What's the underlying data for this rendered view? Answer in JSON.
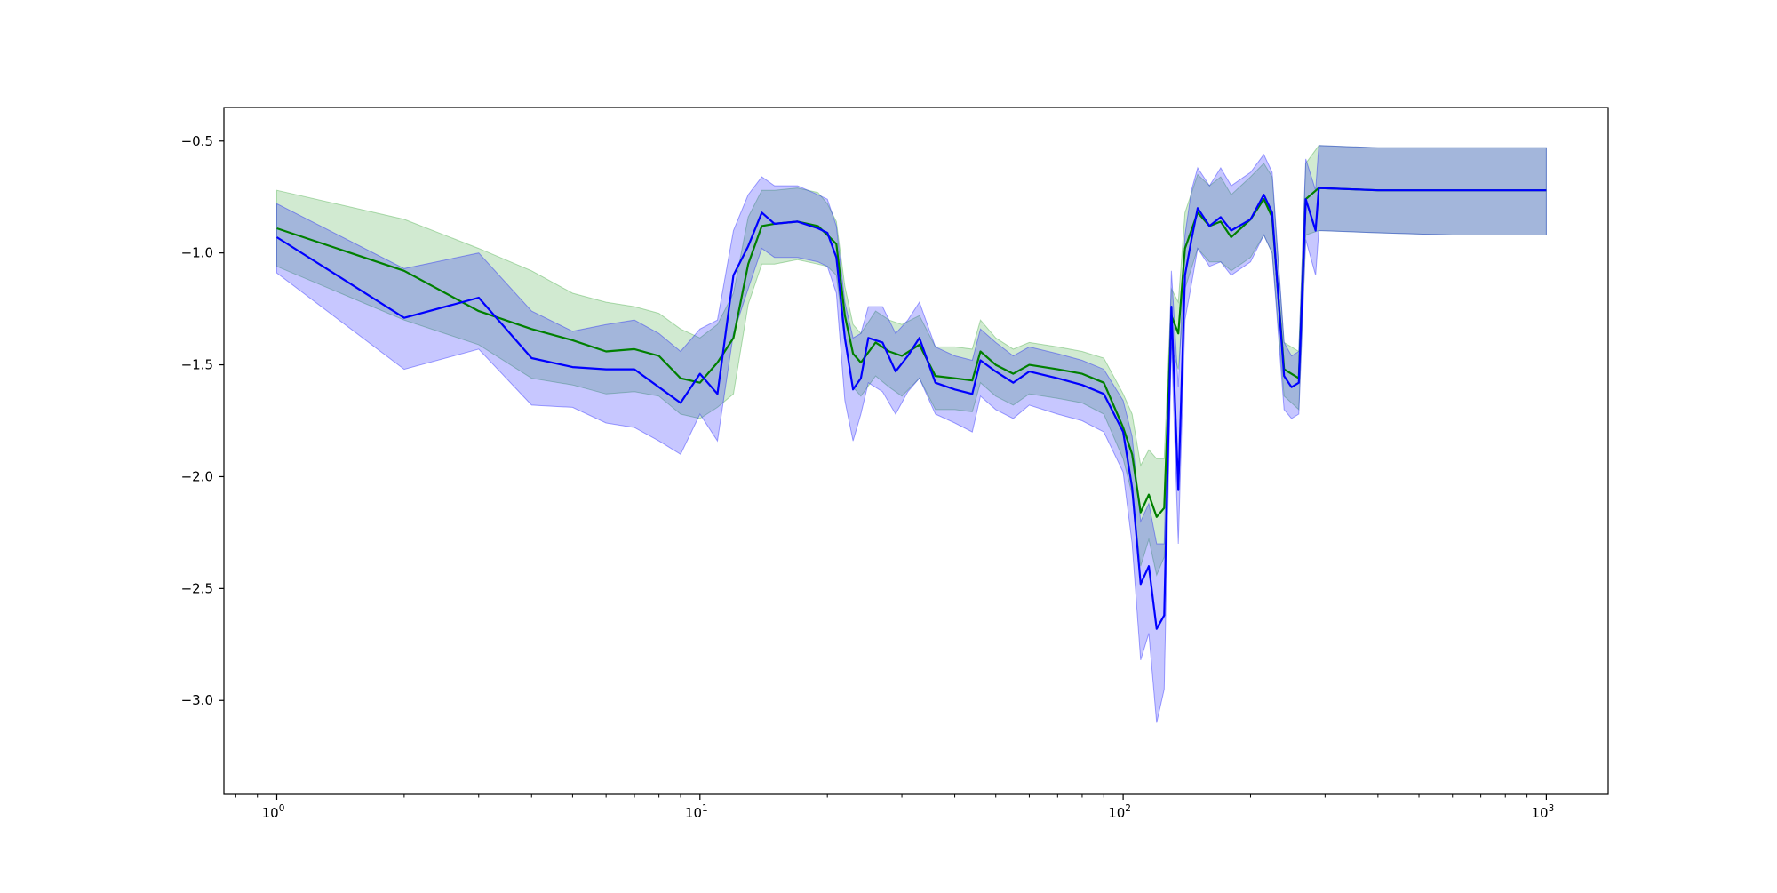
{
  "chart_data": {
    "type": "line",
    "xscale": "log",
    "xlim": [
      0.75,
      1400
    ],
    "ylim": [
      -3.42,
      -0.35
    ],
    "grid": false,
    "legend": "none",
    "xticks": [
      {
        "value": 1,
        "base": "10",
        "exp": "0"
      },
      {
        "value": 10,
        "base": "10",
        "exp": "1"
      },
      {
        "value": 100,
        "base": "10",
        "exp": "2"
      },
      {
        "value": 1000,
        "base": "10",
        "exp": "3"
      }
    ],
    "yticks": [
      {
        "value": -0.5,
        "label": "−0.5"
      },
      {
        "value": -1.0,
        "label": "−1.0"
      },
      {
        "value": -1.5,
        "label": "−1.5"
      },
      {
        "value": -2.0,
        "label": "−2.0"
      },
      {
        "value": -2.5,
        "label": "−2.5"
      },
      {
        "value": -3.0,
        "label": "−3.0"
      }
    ],
    "series": [
      {
        "color": "#008000",
        "band_color": "#2ca02c",
        "band_opacity": 0.22,
        "points": [
          [
            1,
            -0.89,
            -0.72,
            -1.06
          ],
          [
            2,
            -1.08,
            -0.85,
            -1.3
          ],
          [
            3,
            -1.26,
            -0.98,
            -1.41
          ],
          [
            4,
            -1.34,
            -1.08,
            -1.56
          ],
          [
            5,
            -1.39,
            -1.18,
            -1.59
          ],
          [
            6,
            -1.44,
            -1.22,
            -1.63
          ],
          [
            7,
            -1.43,
            -1.24,
            -1.62
          ],
          [
            8,
            -1.46,
            -1.27,
            -1.64
          ],
          [
            9,
            -1.56,
            -1.34,
            -1.72
          ],
          [
            10,
            -1.58,
            -1.38,
            -1.74
          ],
          [
            11,
            -1.49,
            -1.32,
            -1.69
          ],
          [
            12,
            -1.38,
            -1.18,
            -1.63
          ],
          [
            13,
            -1.05,
            -0.84,
            -1.23
          ],
          [
            14,
            -0.88,
            -0.72,
            -1.05
          ],
          [
            15,
            -0.87,
            -0.72,
            -1.05
          ],
          [
            17,
            -0.86,
            -0.71,
            -1.03
          ],
          [
            19,
            -0.88,
            -0.73,
            -1.05
          ],
          [
            20,
            -0.92,
            -0.78,
            -1.06
          ],
          [
            21,
            -0.96,
            -0.86,
            -1.1
          ],
          [
            22,
            -1.28,
            -1.15,
            -1.4
          ],
          [
            23,
            -1.45,
            -1.32,
            -1.6
          ],
          [
            24,
            -1.49,
            -1.36,
            -1.64
          ],
          [
            26,
            -1.4,
            -1.26,
            -1.55
          ],
          [
            28,
            -1.44,
            -1.3,
            -1.6
          ],
          [
            30,
            -1.46,
            -1.32,
            -1.64
          ],
          [
            33,
            -1.41,
            -1.28,
            -1.56
          ],
          [
            36,
            -1.55,
            -1.42,
            -1.7
          ],
          [
            40,
            -1.56,
            -1.42,
            -1.7
          ],
          [
            44,
            -1.57,
            -1.43,
            -1.71
          ],
          [
            46,
            -1.44,
            -1.3,
            -1.58
          ],
          [
            50,
            -1.5,
            -1.38,
            -1.64
          ],
          [
            55,
            -1.54,
            -1.43,
            -1.68
          ],
          [
            60,
            -1.5,
            -1.4,
            -1.63
          ],
          [
            70,
            -1.52,
            -1.42,
            -1.65
          ],
          [
            80,
            -1.54,
            -1.44,
            -1.67
          ],
          [
            90,
            -1.58,
            -1.47,
            -1.72
          ],
          [
            100,
            -1.78,
            -1.63,
            -1.92
          ],
          [
            105,
            -1.9,
            -1.72,
            -2.08
          ],
          [
            110,
            -2.16,
            -1.95,
            -2.4
          ],
          [
            115,
            -2.08,
            -1.88,
            -2.28
          ],
          [
            120,
            -2.18,
            -1.92,
            -2.44
          ],
          [
            125,
            -2.14,
            -1.92,
            -2.36
          ],
          [
            130,
            -1.28,
            -1.16,
            -1.42
          ],
          [
            135,
            -1.36,
            -1.22,
            -1.52
          ],
          [
            140,
            -0.98,
            -0.82,
            -1.16
          ],
          [
            150,
            -0.82,
            -0.65,
            -0.98
          ],
          [
            160,
            -0.88,
            -0.7,
            -1.04
          ],
          [
            170,
            -0.86,
            -0.66,
            -1.04
          ],
          [
            180,
            -0.93,
            -0.74,
            -1.08
          ],
          [
            200,
            -0.85,
            -0.66,
            -1.02
          ],
          [
            215,
            -0.76,
            -0.6,
            -0.92
          ],
          [
            225,
            -0.84,
            -0.66,
            -1.0
          ],
          [
            240,
            -1.52,
            -1.4,
            -1.64
          ],
          [
            260,
            -1.56,
            -1.44,
            -1.7
          ],
          [
            270,
            -0.76,
            -0.6,
            -0.92
          ],
          [
            290,
            -0.71,
            -0.52,
            -0.9
          ],
          [
            400,
            -0.72,
            -0.53,
            -0.91
          ],
          [
            600,
            -0.72,
            -0.53,
            -0.92
          ],
          [
            1000,
            -0.72,
            -0.53,
            -0.92
          ]
        ]
      },
      {
        "color": "#0000ff",
        "band_color": "#0000ff",
        "band_opacity": 0.22,
        "points": [
          [
            1,
            -0.93,
            -0.78,
            -1.09
          ],
          [
            2,
            -1.29,
            -1.07,
            -1.52
          ],
          [
            3,
            -1.2,
            -1.0,
            -1.43
          ],
          [
            4,
            -1.47,
            -1.26,
            -1.68
          ],
          [
            5,
            -1.51,
            -1.35,
            -1.69
          ],
          [
            6,
            -1.52,
            -1.32,
            -1.76
          ],
          [
            7,
            -1.52,
            -1.3,
            -1.78
          ],
          [
            8,
            -1.6,
            -1.36,
            -1.84
          ],
          [
            9,
            -1.67,
            -1.44,
            -1.9
          ],
          [
            10,
            -1.54,
            -1.34,
            -1.72
          ],
          [
            11,
            -1.63,
            -1.3,
            -1.84
          ],
          [
            12,
            -1.1,
            -0.9,
            -1.36
          ],
          [
            13,
            -0.97,
            -0.74,
            -1.16
          ],
          [
            14,
            -0.82,
            -0.66,
            -0.98
          ],
          [
            15,
            -0.87,
            -0.7,
            -1.02
          ],
          [
            17,
            -0.86,
            -0.7,
            -1.02
          ],
          [
            19,
            -0.89,
            -0.74,
            -1.04
          ],
          [
            20,
            -0.91,
            -0.76,
            -1.06
          ],
          [
            21,
            -1.02,
            -0.88,
            -1.18
          ],
          [
            22,
            -1.38,
            -1.22,
            -1.66
          ],
          [
            23,
            -1.61,
            -1.38,
            -1.84
          ],
          [
            24,
            -1.56,
            -1.36,
            -1.72
          ],
          [
            25,
            -1.38,
            -1.24,
            -1.58
          ],
          [
            27,
            -1.4,
            -1.24,
            -1.62
          ],
          [
            29,
            -1.53,
            -1.36,
            -1.72
          ],
          [
            31,
            -1.46,
            -1.3,
            -1.62
          ],
          [
            33,
            -1.38,
            -1.22,
            -1.56
          ],
          [
            36,
            -1.58,
            -1.42,
            -1.72
          ],
          [
            40,
            -1.61,
            -1.46,
            -1.76
          ],
          [
            44,
            -1.63,
            -1.48,
            -1.8
          ],
          [
            46,
            -1.48,
            -1.34,
            -1.64
          ],
          [
            50,
            -1.53,
            -1.4,
            -1.7
          ],
          [
            55,
            -1.58,
            -1.46,
            -1.74
          ],
          [
            60,
            -1.53,
            -1.42,
            -1.68
          ],
          [
            70,
            -1.56,
            -1.45,
            -1.72
          ],
          [
            80,
            -1.59,
            -1.48,
            -1.75
          ],
          [
            90,
            -1.63,
            -1.52,
            -1.8
          ],
          [
            100,
            -1.8,
            -1.66,
            -1.98
          ],
          [
            105,
            -2.05,
            -1.82,
            -2.3
          ],
          [
            110,
            -2.48,
            -2.2,
            -2.82
          ],
          [
            115,
            -2.4,
            -2.12,
            -2.7
          ],
          [
            120,
            -2.68,
            -2.3,
            -3.1
          ],
          [
            125,
            -2.62,
            -2.3,
            -2.95
          ],
          [
            130,
            -1.24,
            -1.08,
            -1.4
          ],
          [
            135,
            -2.06,
            -1.6,
            -2.3
          ],
          [
            140,
            -1.1,
            -0.92,
            -1.3
          ],
          [
            145,
            -0.94,
            -0.72,
            -1.14
          ],
          [
            150,
            -0.8,
            -0.62,
            -0.98
          ],
          [
            160,
            -0.88,
            -0.7,
            -1.06
          ],
          [
            170,
            -0.84,
            -0.62,
            -1.04
          ],
          [
            180,
            -0.9,
            -0.7,
            -1.1
          ],
          [
            200,
            -0.85,
            -0.64,
            -1.04
          ],
          [
            215,
            -0.74,
            -0.56,
            -0.92
          ],
          [
            225,
            -0.82,
            -0.64,
            -1.0
          ],
          [
            240,
            -1.55,
            -1.4,
            -1.7
          ],
          [
            250,
            -1.6,
            -1.46,
            -1.74
          ],
          [
            260,
            -1.58,
            -1.44,
            -1.72
          ],
          [
            270,
            -0.76,
            -0.58,
            -0.94
          ],
          [
            285,
            -0.9,
            -0.72,
            -1.1
          ],
          [
            290,
            -0.71,
            -0.52,
            -0.9
          ],
          [
            400,
            -0.72,
            -0.53,
            -0.91
          ],
          [
            600,
            -0.72,
            -0.53,
            -0.92
          ],
          [
            1000,
            -0.72,
            -0.53,
            -0.92
          ]
        ]
      }
    ]
  }
}
